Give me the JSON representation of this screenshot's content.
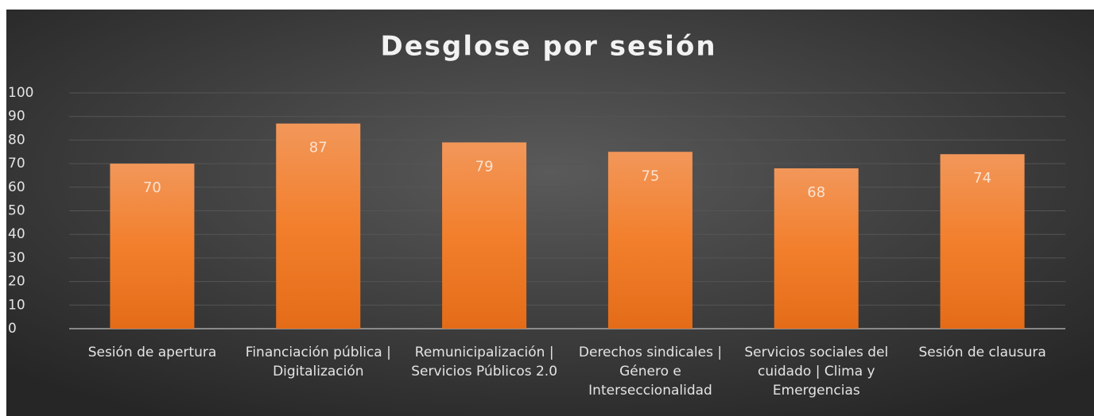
{
  "chart_data": {
    "type": "bar",
    "title": "Desglose por sesión",
    "categories": [
      "Sesión de apertura",
      "Financiación pública | Digitalización",
      "Remunicipalización | Servicios Públicos 2.0",
      "Derechos sindicales | Género e Interseccionalidad",
      "Servicios sociales del cuidado | Clima y Emergencias",
      "Sesión de clausura"
    ],
    "values": [
      70,
      87,
      79,
      75,
      68,
      74
    ],
    "color": "#f07b28",
    "ylim": [
      0,
      100
    ],
    "yticks": [
      0,
      10,
      20,
      30,
      40,
      50,
      60,
      70,
      80,
      90,
      100
    ],
    "grid": true
  }
}
